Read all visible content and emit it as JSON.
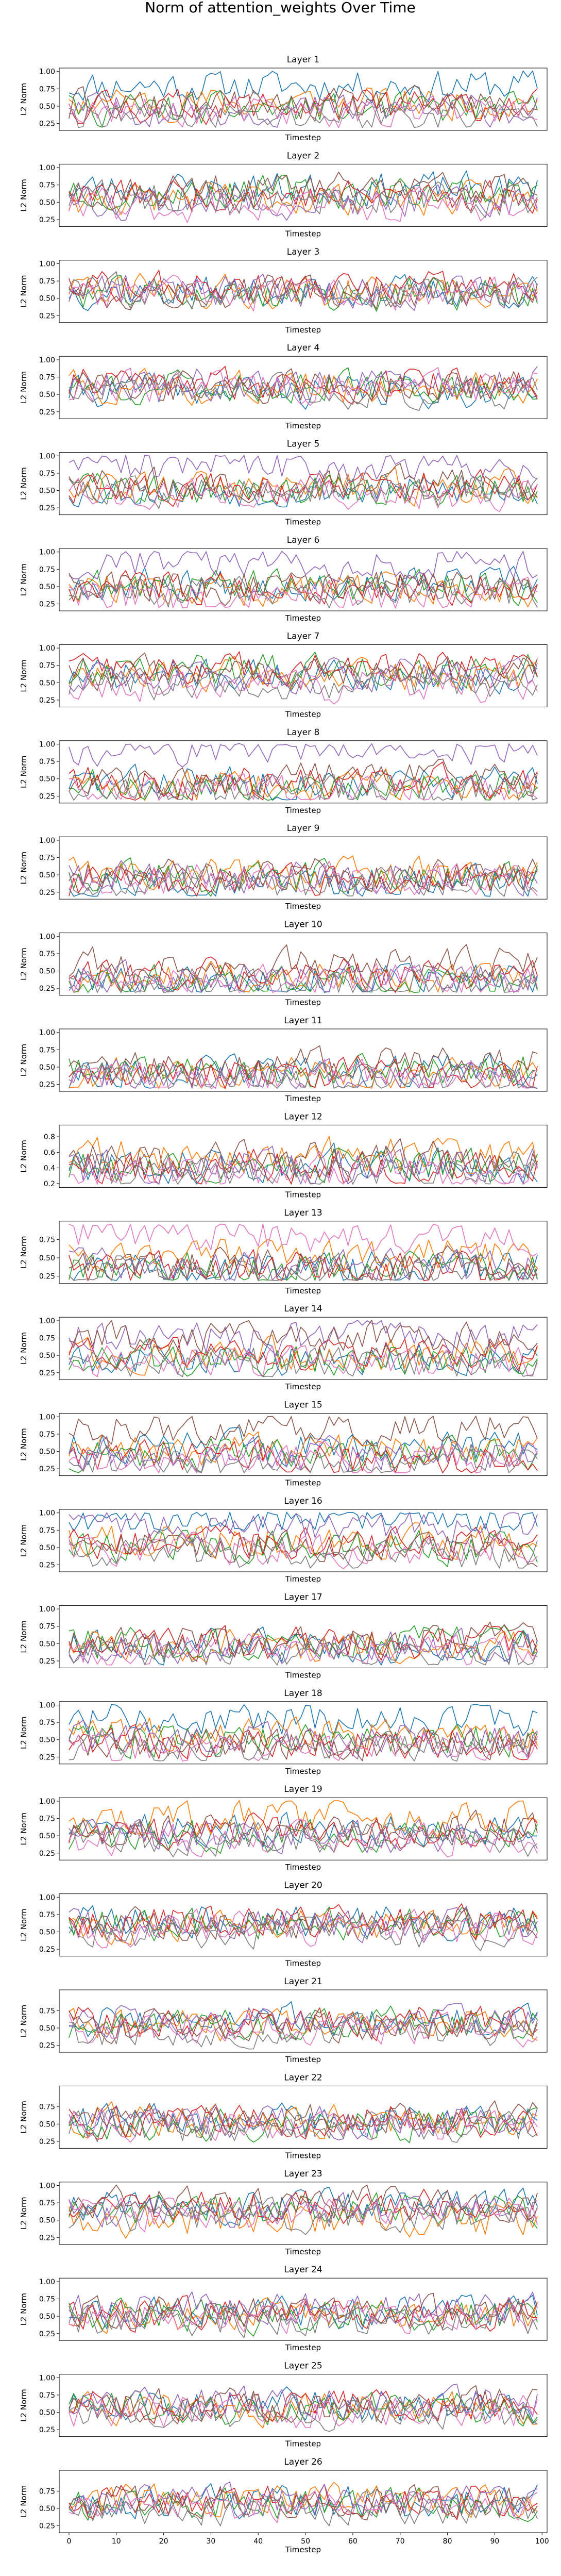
{
  "figure": {
    "title": "Norm of attention_weights Over Time"
  },
  "style": {
    "palette": [
      "#1f77b4",
      "#ff7f0e",
      "#2ca02c",
      "#d62728",
      "#9467bd",
      "#8c564b",
      "#e377c2",
      "#7f7f7f"
    ],
    "axis_color": "#000000"
  },
  "chart_data": [
    {
      "type": "line",
      "title": "Layer 1",
      "xlabel": "Timestep",
      "ylabel": "L2 Norm",
      "xlim": [
        0,
        99
      ],
      "ylim": [
        0.15,
        1.05
      ],
      "yticks": [
        0.25,
        0.5,
        0.75,
        1.0
      ],
      "ytick_labels": [
        "0.25",
        "0.50",
        "0.75",
        "1.00"
      ],
      "grid": false,
      "legend": "none",
      "timesteps": 100,
      "series_count": 8,
      "series_base": [
        0.8,
        0.55,
        0.45,
        0.5,
        0.45,
        0.5,
        0.4,
        0.35
      ],
      "seed": 11
    },
    {
      "type": "line",
      "title": "Layer 2",
      "xlabel": "Timestep",
      "ylabel": "L2 Norm",
      "xlim": [
        0,
        99
      ],
      "ylim": [
        0.15,
        1.05
      ],
      "yticks": [
        0.25,
        0.5,
        0.75,
        1.0
      ],
      "ytick_labels": [
        "0.25",
        "0.50",
        "0.75",
        "1.00"
      ],
      "grid": false,
      "legend": "none",
      "timesteps": 100,
      "series_count": 8,
      "series_base": [
        0.7,
        0.55,
        0.65,
        0.6,
        0.5,
        0.7,
        0.45,
        0.55
      ],
      "seed": 23
    },
    {
      "type": "line",
      "title": "Layer 3",
      "xlabel": "Timestep",
      "ylabel": "L2 Norm",
      "xlim": [
        0,
        99
      ],
      "ylim": [
        0.15,
        1.05
      ],
      "yticks": [
        0.25,
        0.5,
        0.75,
        1.0
      ],
      "ytick_labels": [
        "0.25",
        "0.50",
        "0.75",
        "1.00"
      ],
      "grid": false,
      "legend": "none",
      "timesteps": 100,
      "series_count": 8,
      "series_base": [
        0.6,
        0.6,
        0.55,
        0.65,
        0.6,
        0.6,
        0.55,
        0.6
      ],
      "seed": 37
    },
    {
      "type": "line",
      "title": "Layer 4",
      "xlabel": "Timestep",
      "ylabel": "L2 Norm",
      "xlim": [
        0,
        99
      ],
      "ylim": [
        0.15,
        1.05
      ],
      "yticks": [
        0.25,
        0.5,
        0.75,
        1.0
      ],
      "ytick_labels": [
        "0.25",
        "0.50",
        "0.75",
        "1.00"
      ],
      "grid": false,
      "legend": "none",
      "timesteps": 100,
      "series_count": 8,
      "series_base": [
        0.55,
        0.6,
        0.6,
        0.65,
        0.65,
        0.6,
        0.6,
        0.55
      ],
      "seed": 41
    },
    {
      "type": "line",
      "title": "Layer 5",
      "xlabel": "Timestep",
      "ylabel": "L2 Norm",
      "xlim": [
        0,
        99
      ],
      "ylim": [
        0.15,
        1.05
      ],
      "yticks": [
        0.25,
        0.5,
        0.75,
        1.0
      ],
      "ytick_labels": [
        "0.25",
        "0.50",
        "0.75",
        "1.00"
      ],
      "grid": false,
      "legend": "none",
      "timesteps": 100,
      "series_count": 8,
      "series_base": [
        0.5,
        0.55,
        0.5,
        0.55,
        0.85,
        0.6,
        0.45,
        0.5
      ],
      "seed": 53
    },
    {
      "type": "line",
      "title": "Layer 6",
      "xlabel": "Timestep",
      "ylabel": "L2 Norm",
      "xlim": [
        0,
        99
      ],
      "ylim": [
        0.15,
        1.05
      ],
      "yticks": [
        0.25,
        0.5,
        0.75,
        1.0
      ],
      "ytick_labels": [
        "0.25",
        "0.50",
        "0.75",
        "1.00"
      ],
      "grid": false,
      "legend": "none",
      "timesteps": 100,
      "series_count": 8,
      "series_base": [
        0.55,
        0.45,
        0.5,
        0.5,
        0.85,
        0.5,
        0.35,
        0.4
      ],
      "seed": 67
    },
    {
      "type": "line",
      "title": "Layer 7",
      "xlabel": "Timestep",
      "ylabel": "L2 Norm",
      "xlim": [
        0,
        99
      ],
      "ylim": [
        0.15,
        1.05
      ],
      "yticks": [
        0.25,
        0.5,
        0.75,
        1.0
      ],
      "ytick_labels": [
        "0.25",
        "0.50",
        "0.75",
        "1.00"
      ],
      "grid": false,
      "legend": "none",
      "timesteps": 100,
      "series_count": 8,
      "series_base": [
        0.6,
        0.6,
        0.7,
        0.7,
        0.6,
        0.65,
        0.45,
        0.5
      ],
      "seed": 71
    },
    {
      "type": "line",
      "title": "Layer 8",
      "xlabel": "Timestep",
      "ylabel": "L2 Norm",
      "xlim": [
        0,
        99
      ],
      "ylim": [
        0.15,
        1.05
      ],
      "yticks": [
        0.25,
        0.5,
        0.75,
        1.0
      ],
      "ytick_labels": [
        "0.25",
        "0.50",
        "0.75",
        "1.00"
      ],
      "grid": false,
      "legend": "none",
      "timesteps": 100,
      "series_count": 8,
      "series_base": [
        0.45,
        0.4,
        0.4,
        0.45,
        0.95,
        0.5,
        0.35,
        0.3
      ],
      "seed": 83
    },
    {
      "type": "line",
      "title": "Layer 9",
      "xlabel": "Timestep",
      "ylabel": "L2 Norm",
      "xlim": [
        0,
        99
      ],
      "ylim": [
        0.15,
        1.05
      ],
      "yticks": [
        0.25,
        0.5,
        0.75,
        1.0
      ],
      "ytick_labels": [
        "0.25",
        "0.50",
        "0.75",
        "1.00"
      ],
      "grid": false,
      "legend": "none",
      "timesteps": 100,
      "series_count": 8,
      "series_base": [
        0.4,
        0.5,
        0.45,
        0.4,
        0.45,
        0.5,
        0.45,
        0.35
      ],
      "seed": 97
    },
    {
      "type": "line",
      "title": "Layer 10",
      "xlabel": "Timestep",
      "ylabel": "L2 Norm",
      "xlim": [
        0,
        99
      ],
      "ylim": [
        0.15,
        1.05
      ],
      "yticks": [
        0.25,
        0.5,
        0.75,
        1.0
      ],
      "ytick_labels": [
        "0.25",
        "0.50",
        "0.75",
        "1.00"
      ],
      "grid": false,
      "legend": "none",
      "timesteps": 100,
      "series_count": 8,
      "series_base": [
        0.35,
        0.4,
        0.35,
        0.45,
        0.4,
        0.6,
        0.35,
        0.3
      ],
      "seed": 101
    },
    {
      "type": "line",
      "title": "Layer 11",
      "xlabel": "Timestep",
      "ylabel": "L2 Norm",
      "xlim": [
        0,
        99
      ],
      "ylim": [
        0.15,
        1.05
      ],
      "yticks": [
        0.25,
        0.5,
        0.75,
        1.0
      ],
      "ytick_labels": [
        "0.25",
        "0.50",
        "0.75",
        "1.00"
      ],
      "grid": false,
      "legend": "none",
      "timesteps": 100,
      "series_count": 8,
      "series_base": [
        0.45,
        0.4,
        0.45,
        0.4,
        0.35,
        0.55,
        0.35,
        0.3
      ],
      "seed": 113
    },
    {
      "type": "line",
      "title": "Layer 12",
      "xlabel": "Timestep",
      "ylabel": "L2 Norm",
      "xlim": [
        0,
        99
      ],
      "ylim": [
        0.15,
        0.95
      ],
      "yticks": [
        0.2,
        0.4,
        0.6,
        0.8
      ],
      "ytick_labels": [
        "0.2",
        "0.4",
        "0.6",
        "0.8"
      ],
      "grid": false,
      "legend": "none",
      "timesteps": 100,
      "series_count": 8,
      "series_base": [
        0.45,
        0.55,
        0.4,
        0.4,
        0.4,
        0.5,
        0.35,
        0.35
      ],
      "seed": 127
    },
    {
      "type": "line",
      "title": "Layer 13",
      "xlabel": "Timestep",
      "ylabel": "L2 Norm",
      "xlim": [
        0,
        99
      ],
      "ylim": [
        0.15,
        1.0
      ],
      "yticks": [
        0.25,
        0.5,
        0.75
      ],
      "ytick_labels": [
        "0.25",
        "0.50",
        "0.75"
      ],
      "grid": false,
      "legend": "none",
      "timesteps": 100,
      "series_count": 8,
      "series_base": [
        0.35,
        0.55,
        0.35,
        0.35,
        0.4,
        0.4,
        0.8,
        0.3
      ],
      "seed": 131
    },
    {
      "type": "line",
      "title": "Layer 14",
      "xlabel": "Timestep",
      "ylabel": "L2 Norm",
      "xlim": [
        0,
        99
      ],
      "ylim": [
        0.15,
        1.05
      ],
      "yticks": [
        0.25,
        0.5,
        0.75,
        1.0
      ],
      "ytick_labels": [
        "0.25",
        "0.50",
        "0.75",
        "1.00"
      ],
      "grid": false,
      "legend": "none",
      "timesteps": 100,
      "series_count": 8,
      "series_base": [
        0.45,
        0.5,
        0.45,
        0.5,
        0.75,
        0.75,
        0.4,
        0.4
      ],
      "seed": 149
    },
    {
      "type": "line",
      "title": "Layer 15",
      "xlabel": "Timestep",
      "ylabel": "L2 Norm",
      "xlim": [
        0,
        99
      ],
      "ylim": [
        0.15,
        1.05
      ],
      "yticks": [
        0.25,
        0.5,
        0.75,
        1.0
      ],
      "ytick_labels": [
        "0.25",
        "0.50",
        "0.75",
        "1.00"
      ],
      "grid": false,
      "legend": "none",
      "timesteps": 100,
      "series_count": 8,
      "series_base": [
        0.55,
        0.5,
        0.45,
        0.4,
        0.45,
        0.85,
        0.4,
        0.35
      ],
      "seed": 151
    },
    {
      "type": "line",
      "title": "Layer 16",
      "xlabel": "Timestep",
      "ylabel": "L2 Norm",
      "xlim": [
        0,
        99
      ],
      "ylim": [
        0.15,
        1.05
      ],
      "yticks": [
        0.25,
        0.5,
        0.75,
        1.0
      ],
      "ytick_labels": [
        "0.25",
        "0.50",
        "0.75",
        "1.00"
      ],
      "grid": false,
      "legend": "none",
      "timesteps": 100,
      "series_count": 8,
      "series_base": [
        0.95,
        0.6,
        0.5,
        0.55,
        0.8,
        0.5,
        0.45,
        0.4
      ],
      "seed": 163
    },
    {
      "type": "line",
      "title": "Layer 17",
      "xlabel": "Timestep",
      "ylabel": "L2 Norm",
      "xlim": [
        0,
        99
      ],
      "ylim": [
        0.15,
        1.05
      ],
      "yticks": [
        0.25,
        0.5,
        0.75,
        1.0
      ],
      "ytick_labels": [
        "0.25",
        "0.50",
        "0.75",
        "1.00"
      ],
      "grid": false,
      "legend": "none",
      "timesteps": 100,
      "series_count": 8,
      "series_base": [
        0.45,
        0.45,
        0.5,
        0.5,
        0.45,
        0.55,
        0.4,
        0.35
      ],
      "seed": 173
    },
    {
      "type": "line",
      "title": "Layer 18",
      "xlabel": "Timestep",
      "ylabel": "L2 Norm",
      "xlim": [
        0,
        99
      ],
      "ylim": [
        0.15,
        1.05
      ],
      "yticks": [
        0.25,
        0.5,
        0.75,
        1.0
      ],
      "ytick_labels": [
        "0.25",
        "0.50",
        "0.75",
        "1.00"
      ],
      "grid": false,
      "legend": "none",
      "timesteps": 100,
      "series_count": 8,
      "series_base": [
        0.8,
        0.6,
        0.5,
        0.45,
        0.5,
        0.45,
        0.4,
        0.35
      ],
      "seed": 181
    },
    {
      "type": "line",
      "title": "Layer 19",
      "xlabel": "Timestep",
      "ylabel": "L2 Norm",
      "xlim": [
        0,
        99
      ],
      "ylim": [
        0.15,
        1.05
      ],
      "yticks": [
        0.25,
        0.5,
        0.75,
        1.0
      ],
      "ytick_labels": [
        "0.25",
        "0.50",
        "0.75",
        "1.00"
      ],
      "grid": false,
      "legend": "none",
      "timesteps": 100,
      "series_count": 8,
      "series_base": [
        0.6,
        0.75,
        0.5,
        0.55,
        0.5,
        0.6,
        0.45,
        0.45
      ],
      "seed": 191
    },
    {
      "type": "line",
      "title": "Layer 20",
      "xlabel": "Timestep",
      "ylabel": "L2 Norm",
      "xlim": [
        0,
        99
      ],
      "ylim": [
        0.15,
        1.05
      ],
      "yticks": [
        0.25,
        0.5,
        0.75,
        1.0
      ],
      "ytick_labels": [
        "0.25",
        "0.50",
        "0.75",
        "1.00"
      ],
      "grid": false,
      "legend": "none",
      "timesteps": 100,
      "series_count": 8,
      "series_base": [
        0.65,
        0.6,
        0.6,
        0.65,
        0.6,
        0.6,
        0.55,
        0.5
      ],
      "seed": 197
    },
    {
      "type": "line",
      "title": "Layer 21",
      "xlabel": "Timestep",
      "ylabel": "L2 Norm",
      "xlim": [
        0,
        99
      ],
      "ylim": [
        0.15,
        1.05
      ],
      "yticks": [
        0.25,
        0.5,
        0.75
      ],
      "ytick_labels": [
        "0.25",
        "0.50",
        "0.75"
      ],
      "grid": false,
      "legend": "none",
      "timesteps": 100,
      "series_count": 8,
      "series_base": [
        0.6,
        0.55,
        0.55,
        0.6,
        0.6,
        0.55,
        0.5,
        0.45
      ],
      "seed": 211
    },
    {
      "type": "line",
      "title": "Layer 22",
      "xlabel": "Timestep",
      "ylabel": "L2 Norm",
      "xlim": [
        0,
        99
      ],
      "ylim": [
        0.15,
        1.05
      ],
      "yticks": [
        0.25,
        0.5,
        0.75
      ],
      "ytick_labels": [
        "0.25",
        "0.50",
        "0.75"
      ],
      "grid": false,
      "legend": "none",
      "timesteps": 100,
      "series_count": 8,
      "series_base": [
        0.55,
        0.55,
        0.5,
        0.55,
        0.55,
        0.6,
        0.5,
        0.45
      ],
      "seed": 223
    },
    {
      "type": "line",
      "title": "Layer 23",
      "xlabel": "Timestep",
      "ylabel": "L2 Norm",
      "xlim": [
        0,
        99
      ],
      "ylim": [
        0.15,
        1.05
      ],
      "yticks": [
        0.25,
        0.5,
        0.75,
        1.0
      ],
      "ytick_labels": [
        "0.25",
        "0.50",
        "0.75",
        "1.00"
      ],
      "grid": false,
      "legend": "none",
      "timesteps": 100,
      "series_count": 8,
      "series_base": [
        0.7,
        0.5,
        0.65,
        0.7,
        0.65,
        0.75,
        0.6,
        0.55
      ],
      "seed": 227
    },
    {
      "type": "line",
      "title": "Layer 24",
      "xlabel": "Timestep",
      "ylabel": "L2 Norm",
      "xlim": [
        0,
        99
      ],
      "ylim": [
        0.15,
        1.05
      ],
      "yticks": [
        0.25,
        0.5,
        0.75,
        1.0
      ],
      "ytick_labels": [
        "0.25",
        "0.50",
        "0.75",
        "1.00"
      ],
      "grid": false,
      "legend": "none",
      "timesteps": 100,
      "series_count": 8,
      "series_base": [
        0.55,
        0.5,
        0.5,
        0.55,
        0.6,
        0.55,
        0.5,
        0.45
      ],
      "seed": 233
    },
    {
      "type": "line",
      "title": "Layer 25",
      "xlabel": "Timestep",
      "ylabel": "L2 Norm",
      "xlim": [
        0,
        99
      ],
      "ylim": [
        0.15,
        1.05
      ],
      "yticks": [
        0.25,
        0.5,
        0.75,
        1.0
      ],
      "ytick_labels": [
        "0.25",
        "0.50",
        "0.75",
        "1.00"
      ],
      "grid": false,
      "legend": "none",
      "timesteps": 100,
      "series_count": 8,
      "series_base": [
        0.6,
        0.55,
        0.55,
        0.6,
        0.65,
        0.6,
        0.5,
        0.5
      ],
      "seed": 239
    },
    {
      "type": "line",
      "title": "Layer 26",
      "xlabel": "Timestep",
      "ylabel": "L2 Norm",
      "xlim": [
        0,
        99
      ],
      "ylim": [
        0.15,
        1.05
      ],
      "yticks": [
        0.25,
        0.5,
        0.75
      ],
      "ytick_labels": [
        "0.25",
        "0.50",
        "0.75"
      ],
      "xticks": [
        0,
        10,
        20,
        30,
        40,
        50,
        60,
        70,
        80,
        90,
        100
      ],
      "grid": false,
      "legend": "none",
      "timesteps": 100,
      "series_count": 8,
      "series_base": [
        0.6,
        0.6,
        0.55,
        0.6,
        0.6,
        0.6,
        0.55,
        0.5
      ],
      "seed": 241
    }
  ]
}
